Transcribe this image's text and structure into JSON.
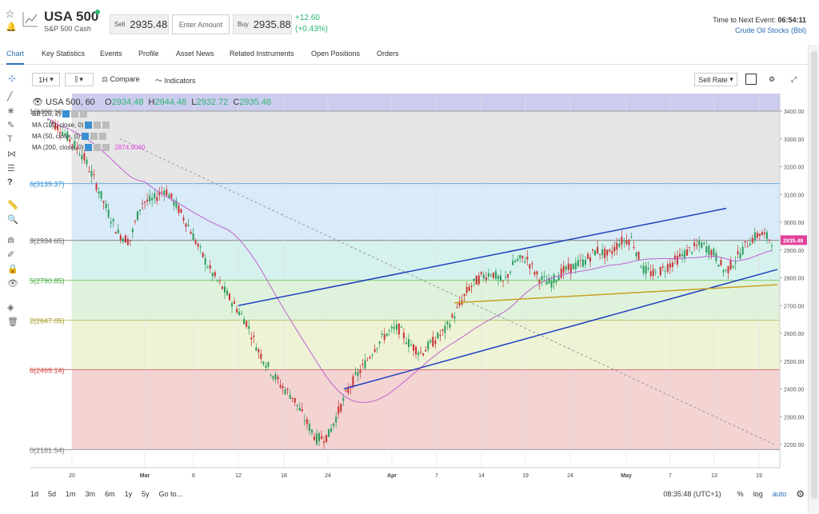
{
  "header": {
    "symbol": "USA 500",
    "subtitle": "S&P 500 Cash",
    "sell_label": "Sell",
    "sell_price": "2935.48",
    "amount_placeholder": "Enter Amount",
    "buy_label": "Buy",
    "buy_price": "2935.88",
    "change_abs": "+12.60",
    "change_pct": "(+0.43%)",
    "event_label": "Time to Next Event:",
    "event_time": "06:54:11",
    "event_name": "Crude Oil Stocks (Bbl)"
  },
  "tabs": [
    "Chart",
    "Key Statistics",
    "Events",
    "Profile",
    "Asset News",
    "Related Instruments",
    "Open Positions",
    "Orders"
  ],
  "toolbar": {
    "interval": "1H",
    "compare": "Compare",
    "indicators": "Indicators",
    "sell_rate": "Sell Rate"
  },
  "legend": {
    "instrument": "USA 500, 60",
    "o_label": "O",
    "o": "2934.48",
    "h_label": "H",
    "h": "2944.48",
    "l_label": "L",
    "l": "2932.72",
    "c_label": "C",
    "c": "2935.48",
    "indicators": [
      "BB (20, 2)",
      "MA (100, close, 0)",
      "MA (50, close, 0)",
      "MA (200, close, 0)"
    ],
    "ma200_value": "2874.9040"
  },
  "fib": [
    {
      "label": "1(3400.16)",
      "v": 3400.16
    },
    {
      "label": "6(3139.37)",
      "v": 3139.37
    },
    {
      "label": "8(2934.65)",
      "v": 2934.65
    },
    {
      "label": "5(2790.85)",
      "v": 2790.85
    },
    {
      "label": "2(2647.05)",
      "v": 2647.05
    },
    {
      "label": "6(2469.14)",
      "v": 2469.14
    },
    {
      "label": "0(2181.54)",
      "v": 2181.54
    }
  ],
  "price_axis": {
    "ticks": [
      "3400.00",
      "3300.00",
      "3200.00",
      "3100.00",
      "3000.00",
      "2900.00",
      "2800.00",
      "2700.00",
      "2600.00",
      "2500.00",
      "2400.00",
      "2300.00",
      "2200.00"
    ],
    "current": "2935.48"
  },
  "time_axis": [
    "20",
    "Mar",
    "6",
    "12",
    "18",
    "24",
    "Apr",
    "7",
    "14",
    "19",
    "24",
    "May",
    "7",
    "13",
    "19"
  ],
  "bottom": {
    "ranges": [
      "1d",
      "5d",
      "1m",
      "3m",
      "6m",
      "1y",
      "5y"
    ],
    "goto": "Go to...",
    "clock": "08:35:48 (UTC+1)",
    "pct": "%",
    "log": "log",
    "auto": "auto"
  },
  "colors": {
    "accent": "#2a6db5",
    "up": "#2bb673",
    "price_badge": "#e0409a"
  },
  "chart_data": {
    "type": "line",
    "series": [
      {
        "values": [
          3370,
          3340,
          3290,
          3240,
          3150,
          3050,
          2960,
          2930,
          3070,
          3080,
          3120,
          3060,
          2990,
          2900,
          2820,
          2760,
          2700,
          2640,
          2540,
          2470,
          2410,
          2370,
          2290,
          2220,
          2230,
          2330,
          2420,
          2480,
          2550,
          2600,
          2620,
          2560,
          2530,
          2570,
          2610,
          2680,
          2760,
          2800,
          2820,
          2780,
          2860,
          2870,
          2800,
          2780,
          2820,
          2840,
          2860,
          2900,
          2880,
          2930,
          2940,
          2830,
          2810,
          2840,
          2870,
          2900,
          2920,
          2890,
          2820,
          2870,
          2930,
          2960,
          2935
        ]
      }
    ],
    "ylim": [
      2150,
      3450
    ]
  }
}
